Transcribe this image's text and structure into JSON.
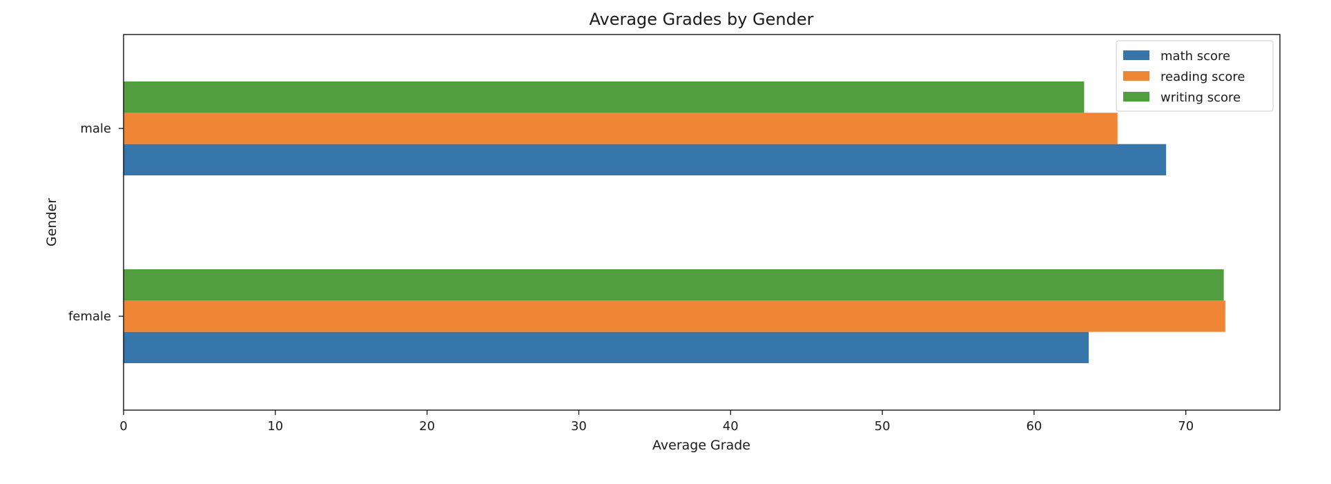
{
  "chart_data": {
    "type": "bar",
    "orientation": "horizontal",
    "title": "Average Grades by Gender",
    "xlabel": "Average Grade",
    "ylabel": "Gender",
    "categories": [
      "female",
      "male"
    ],
    "series": [
      {
        "name": "math score",
        "values": [
          63.6,
          68.7
        ],
        "color": "#3776ab"
      },
      {
        "name": "reading score",
        "values": [
          72.6,
          65.5
        ],
        "color": "#ef8636"
      },
      {
        "name": "writing score",
        "values": [
          72.5,
          63.3
        ],
        "color": "#519e3e"
      }
    ],
    "xlim": [
      0,
      76.2
    ],
    "xticks": [
      0,
      10,
      20,
      30,
      40,
      50,
      60,
      70
    ],
    "grid": false,
    "legend_position": "top-right"
  }
}
